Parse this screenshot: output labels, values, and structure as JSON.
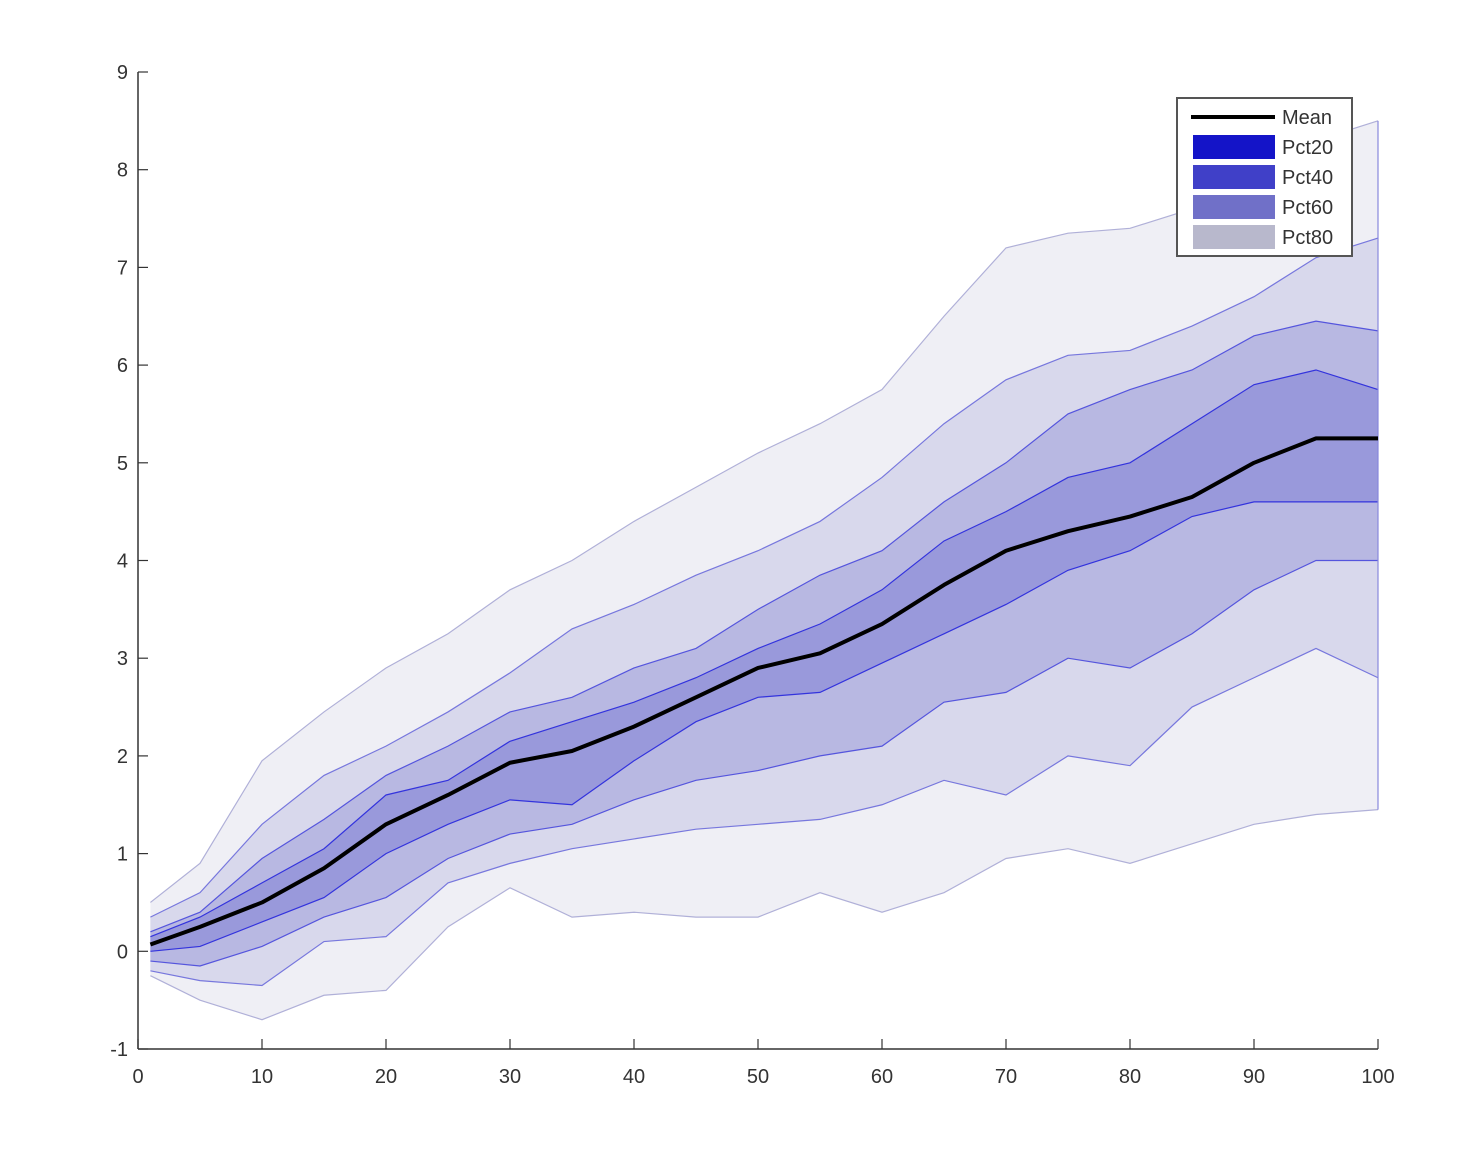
{
  "chart_data": {
    "type": "area",
    "title": "",
    "xlabel": "",
    "ylabel": "",
    "xlim": [
      0,
      100
    ],
    "ylim": [
      -1,
      9
    ],
    "xticks": [
      0,
      10,
      20,
      30,
      40,
      50,
      60,
      70,
      80,
      90,
      100
    ],
    "yticks": [
      -1,
      0,
      1,
      2,
      3,
      4,
      5,
      6,
      7,
      8,
      9
    ],
    "grid": false,
    "legend_position": "top-right",
    "x": [
      1,
      5,
      10,
      15,
      20,
      25,
      30,
      35,
      40,
      45,
      50,
      55,
      60,
      65,
      70,
      75,
      80,
      85,
      90,
      95,
      100
    ],
    "mean": {
      "name": "Mean",
      "color": "#000000",
      "values": [
        0.07,
        0.25,
        0.5,
        0.85,
        1.3,
        1.6,
        1.93,
        2.05,
        2.3,
        2.6,
        2.9,
        3.05,
        3.35,
        3.75,
        4.1,
        4.3,
        4.45,
        4.65,
        5.0,
        5.25,
        5.25
      ]
    },
    "bands": [
      {
        "name": "Pct80",
        "color": "#b8b8cc",
        "fill": "#efeff5",
        "line": "#b0b0d8",
        "upper": [
          0.5,
          0.9,
          1.95,
          2.45,
          2.9,
          3.25,
          3.7,
          4.0,
          4.4,
          4.75,
          5.1,
          5.4,
          5.75,
          6.5,
          7.2,
          7.35,
          7.4,
          7.6,
          8.0,
          8.3,
          8.5
        ],
        "lower": [
          -0.25,
          -0.5,
          -0.7,
          -0.45,
          -0.4,
          0.25,
          0.65,
          0.35,
          0.4,
          0.35,
          0.35,
          0.6,
          0.4,
          0.6,
          0.95,
          1.05,
          0.9,
          1.1,
          1.3,
          1.4,
          1.45
        ]
      },
      {
        "name": "Pct60",
        "color": "#7070c8",
        "fill": "#d8d8ec",
        "line": "#7777dd",
        "upper": [
          0.35,
          0.6,
          1.3,
          1.8,
          2.1,
          2.45,
          2.85,
          3.3,
          3.55,
          3.85,
          4.1,
          4.4,
          4.85,
          5.4,
          5.85,
          6.1,
          6.15,
          6.4,
          6.7,
          7.1,
          7.3
        ],
        "lower": [
          -0.2,
          -0.3,
          -0.35,
          0.1,
          0.15,
          0.7,
          0.9,
          1.05,
          1.15,
          1.25,
          1.3,
          1.35,
          1.5,
          1.75,
          1.6,
          2.0,
          1.9,
          2.5,
          2.8,
          3.1,
          2.8
        ]
      },
      {
        "name": "Pct40",
        "color": "#4040c8",
        "fill": "#b8b8e2",
        "line": "#5555dd",
        "upper": [
          0.2,
          0.4,
          0.95,
          1.35,
          1.8,
          2.1,
          2.45,
          2.6,
          2.9,
          3.1,
          3.5,
          3.85,
          4.1,
          4.6,
          5.0,
          5.5,
          5.75,
          5.95,
          6.3,
          6.45,
          6.35
        ],
        "lower": [
          -0.1,
          -0.15,
          0.05,
          0.35,
          0.55,
          0.95,
          1.2,
          1.3,
          1.55,
          1.75,
          1.85,
          2.0,
          2.1,
          2.55,
          2.65,
          3.0,
          2.9,
          3.25,
          3.7,
          4.0,
          4.0
        ]
      },
      {
        "name": "Pct20",
        "color": "#1414c8",
        "fill": "#9999db",
        "line": "#3333dd",
        "upper": [
          0.15,
          0.35,
          0.7,
          1.05,
          1.6,
          1.75,
          2.15,
          2.35,
          2.55,
          2.8,
          3.1,
          3.35,
          3.7,
          4.2,
          4.5,
          4.85,
          5.0,
          5.4,
          5.8,
          5.95,
          5.75
        ],
        "lower": [
          0.0,
          0.05,
          0.3,
          0.55,
          1.0,
          1.3,
          1.55,
          1.5,
          1.95,
          2.35,
          2.6,
          2.65,
          2.95,
          3.25,
          3.55,
          3.9,
          4.1,
          4.45,
          4.6,
          4.6,
          4.6
        ]
      }
    ],
    "legend": [
      {
        "label": "Mean",
        "color": "#000000",
        "kind": "line"
      },
      {
        "label": "Pct20",
        "color": "#1414c8",
        "kind": "patch"
      },
      {
        "label": "Pct40",
        "color": "#4040c8",
        "kind": "patch"
      },
      {
        "label": "Pct60",
        "color": "#7070c8",
        "kind": "patch"
      },
      {
        "label": "Pct80",
        "color": "#b8b8cc",
        "kind": "patch"
      }
    ]
  }
}
